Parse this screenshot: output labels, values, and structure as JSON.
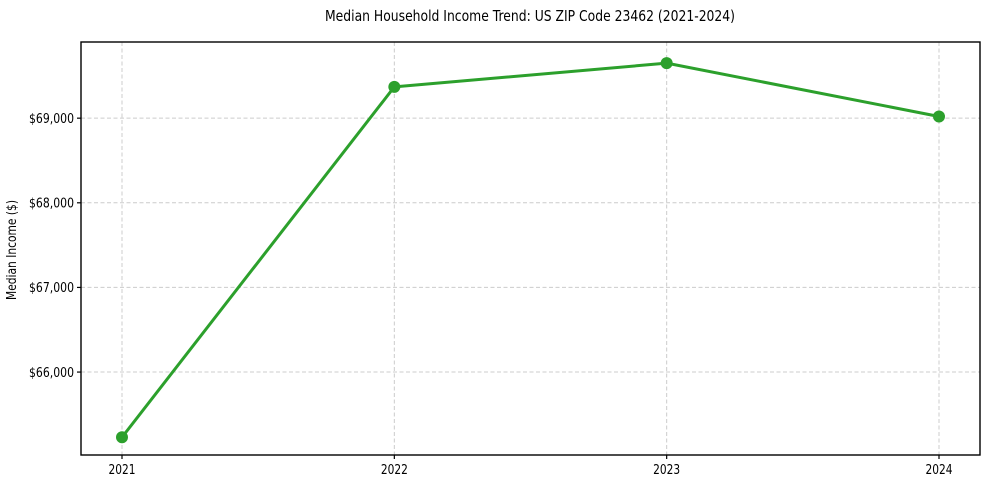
{
  "chart_data": {
    "type": "line",
    "title": "Median Household Income Trend: US ZIP Code 23462 (2021-2024)",
    "ylabel": "Median Income ($)",
    "xlabel": "",
    "categories": [
      "2021",
      "2022",
      "2023",
      "2024"
    ],
    "series": [
      {
        "name": "Median household income",
        "color": "#2ca02c",
        "values": [
          65230,
          69370,
          69650,
          69020
        ]
      }
    ],
    "ylim": [
      65020,
      69900
    ],
    "yticks": [
      {
        "value": 66000,
        "label": "$66,000"
      },
      {
        "value": 67000,
        "label": "$67,000"
      },
      {
        "value": 68000,
        "label": "$68,000"
      },
      {
        "value": 69000,
        "label": "$69,000"
      }
    ],
    "grid": true,
    "grid_style": "dashed",
    "grid_color": "#cccccc",
    "axis_color": "#000000",
    "background_color": "#ffffff",
    "line_width": 3,
    "marker": "circle",
    "marker_size": 12,
    "legend_position": "none"
  }
}
